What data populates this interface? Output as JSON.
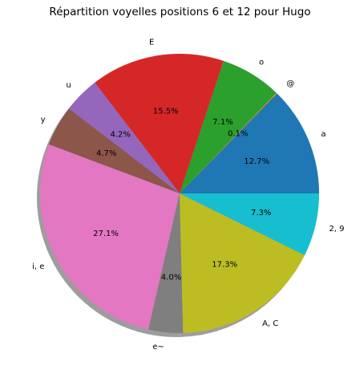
{
  "chart_data": {
    "type": "pie",
    "title": "Répartition voyelles positions 6 et 12 pour Hugo",
    "shadow": true,
    "start_angle_deg": 0,
    "direction": "counterclockwise",
    "slices": [
      {
        "label": "a",
        "value": 12.7,
        "pct_label": "12.7%",
        "color": "#1f77b4"
      },
      {
        "label": "@",
        "value": 0.1,
        "pct_label": "0.1%",
        "color": "#ff7f0e"
      },
      {
        "label": "o",
        "value": 7.1,
        "pct_label": "7.1%",
        "color": "#2ca02c"
      },
      {
        "label": "E",
        "value": 15.5,
        "pct_label": "15.5%",
        "color": "#d62728"
      },
      {
        "label": "u",
        "value": 4.2,
        "pct_label": "4.2%",
        "color": "#9467bd"
      },
      {
        "label": "y",
        "value": 4.7,
        "pct_label": "4.7%",
        "color": "#8c564b"
      },
      {
        "label": "i, e",
        "value": 27.1,
        "pct_label": "27.1%",
        "color": "#e377c2"
      },
      {
        "label": "e~",
        "value": 4.0,
        "pct_label": "4.0%",
        "color": "#7f7f7f"
      },
      {
        "label": "A, C",
        "value": 17.3,
        "pct_label": "17.3%",
        "color": "#bcbd22"
      },
      {
        "label": "2, 9",
        "value": 7.3,
        "pct_label": "7.3%",
        "color": "#17becf"
      }
    ]
  }
}
